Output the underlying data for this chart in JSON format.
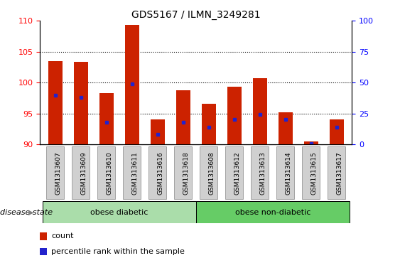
{
  "title": "GDS5167 / ILMN_3249281",
  "samples": [
    "GSM1313607",
    "GSM1313609",
    "GSM1313610",
    "GSM1313611",
    "GSM1313616",
    "GSM1313618",
    "GSM1313608",
    "GSM1313612",
    "GSM1313613",
    "GSM1313614",
    "GSM1313615",
    "GSM1313617"
  ],
  "count_values": [
    103.5,
    103.3,
    98.3,
    109.3,
    94.1,
    98.7,
    96.6,
    99.3,
    100.7,
    95.2,
    90.5,
    94.1
  ],
  "percentile_values": [
    40,
    38,
    18,
    49,
    8,
    18,
    14,
    20,
    24,
    20,
    1,
    14
  ],
  "ylim_left": [
    90,
    110
  ],
  "ylim_right": [
    0,
    100
  ],
  "yticks_left": [
    90,
    95,
    100,
    105,
    110
  ],
  "yticks_right": [
    0,
    25,
    50,
    75,
    100
  ],
  "bar_color": "#cc2200",
  "dot_color": "#2222cc",
  "disease_groups": [
    {
      "label": "obese diabetic",
      "start": 0,
      "end": 6,
      "color": "#aaddaa"
    },
    {
      "label": "obese non-diabetic",
      "start": 6,
      "end": 12,
      "color": "#66cc66"
    }
  ],
  "disease_state_label": "disease state",
  "legend_items": [
    {
      "label": "count",
      "color": "#cc2200"
    },
    {
      "label": "percentile rank within the sample",
      "color": "#2222cc"
    }
  ],
  "bar_width": 0.55,
  "gridlines": [
    95,
    100,
    105
  ]
}
